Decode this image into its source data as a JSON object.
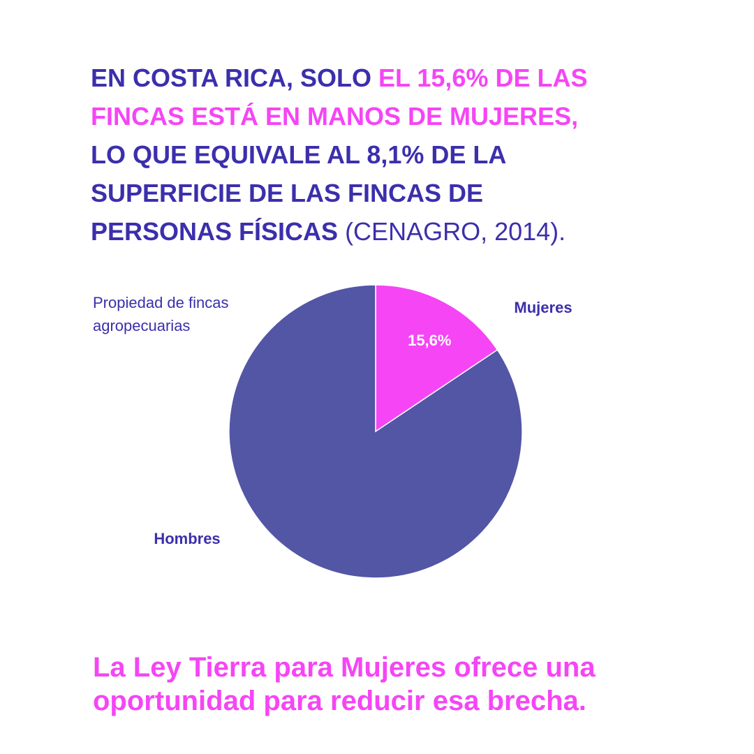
{
  "chart_data": {
    "type": "pie",
    "headline": [
      [
        {
          "text": "EN COSTA RICA, SOLO ",
          "color": "#3b2fac",
          "bold": true
        },
        {
          "text": "EL 15,6% DE LAS",
          "color": "#f545f5",
          "bold": true
        }
      ],
      [
        {
          "text": "FINCAS ESTÁ EN MANOS DE MUJERES,",
          "color": "#f545f5",
          "bold": true
        }
      ],
      [
        {
          "text": "LO QUE EQUIVALE AL 8,1% DE LA",
          "color": "#3b2fac",
          "bold": true
        }
      ],
      [
        {
          "text": "SUPERFICIE DE LAS FINCAS DE",
          "color": "#3b2fac",
          "bold": true
        }
      ],
      [
        {
          "text": "PERSONAS FÍSICAS",
          "color": "#3b2fac",
          "bold": true
        },
        {
          "text": " (CENAGRO, 2014).",
          "color": "#3b2fac",
          "bold": false
        }
      ]
    ],
    "title": "Propiedad de fincas agropecuarias",
    "categories": [
      "Mujeres",
      "Hombres"
    ],
    "values": [
      15.6,
      84.4
    ],
    "value_labels": [
      "15,6%",
      null
    ],
    "colors": [
      "#f545f5",
      "#5355a5"
    ],
    "footer": "La Ley Tierra para Mujeres ofrece una oportunidad para reducir esa brecha."
  }
}
